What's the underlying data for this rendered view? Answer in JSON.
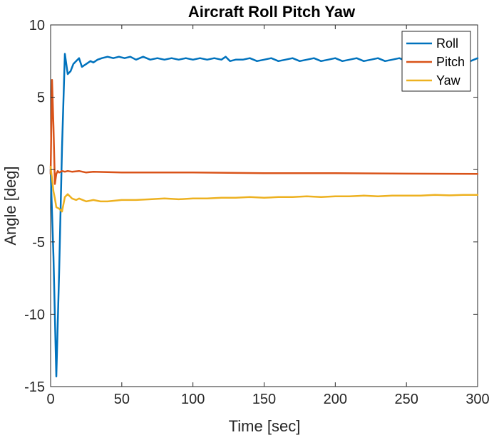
{
  "chart_data": {
    "type": "line",
    "title": "Aircraft Roll Pitch Yaw",
    "xlabel": "Time [sec]",
    "ylabel": "Angle [deg]",
    "xlim": [
      0,
      300
    ],
    "ylim": [
      -15,
      10
    ],
    "xticks": [
      0,
      50,
      100,
      150,
      200,
      250,
      300
    ],
    "yticks": [
      -15,
      -10,
      -5,
      0,
      5,
      10
    ],
    "grid": false,
    "legend_position": "top-right",
    "series": [
      {
        "name": "Roll",
        "color": "#0072BD",
        "x": [
          0,
          2,
          4,
          6,
          8,
          10,
          12,
          14,
          16,
          18,
          20,
          22,
          25,
          28,
          30,
          33,
          36,
          40,
          44,
          48,
          52,
          56,
          60,
          65,
          70,
          75,
          80,
          85,
          90,
          95,
          100,
          105,
          110,
          115,
          120,
          123,
          126,
          130,
          135,
          140,
          145,
          150,
          155,
          160,
          165,
          170,
          175,
          180,
          185,
          190,
          195,
          200,
          205,
          210,
          215,
          220,
          225,
          230,
          235,
          240,
          245,
          250,
          255,
          260,
          265,
          270,
          275,
          280,
          285,
          290,
          295,
          300
        ],
        "y": [
          0,
          -6,
          -14.3,
          -7,
          1.5,
          8.0,
          6.6,
          6.8,
          7.3,
          7.5,
          7.7,
          7.1,
          7.3,
          7.5,
          7.4,
          7.6,
          7.7,
          7.8,
          7.7,
          7.8,
          7.7,
          7.8,
          7.6,
          7.8,
          7.6,
          7.7,
          7.6,
          7.7,
          7.6,
          7.7,
          7.6,
          7.7,
          7.6,
          7.7,
          7.6,
          7.8,
          7.5,
          7.6,
          7.6,
          7.7,
          7.5,
          7.6,
          7.7,
          7.5,
          7.6,
          7.7,
          7.5,
          7.6,
          7.7,
          7.5,
          7.6,
          7.7,
          7.5,
          7.6,
          7.7,
          7.5,
          7.6,
          7.7,
          7.5,
          7.6,
          7.7,
          7.5,
          7.6,
          7.7,
          7.5,
          7.6,
          7.7,
          7.5,
          7.6,
          7.6,
          7.5,
          7.7
        ]
      },
      {
        "name": "Pitch",
        "color": "#D95319",
        "x": [
          0,
          1,
          2,
          3,
          4,
          5,
          6,
          8,
          10,
          12,
          15,
          20,
          25,
          30,
          50,
          100,
          150,
          200,
          250,
          300
        ],
        "y": [
          -0.3,
          6.2,
          3.0,
          -1.0,
          -0.3,
          -0.1,
          -0.2,
          -0.1,
          -0.15,
          -0.1,
          -0.15,
          -0.1,
          -0.2,
          -0.15,
          -0.2,
          -0.2,
          -0.25,
          -0.25,
          -0.28,
          -0.3
        ]
      },
      {
        "name": "Yaw",
        "color": "#EDB120",
        "x": [
          0,
          2,
          3,
          4,
          6,
          8,
          10,
          12,
          15,
          18,
          20,
          25,
          30,
          35,
          40,
          50,
          60,
          70,
          80,
          90,
          100,
          110,
          120,
          130,
          140,
          150,
          160,
          170,
          180,
          190,
          200,
          210,
          220,
          230,
          240,
          250,
          260,
          270,
          280,
          290,
          300
        ],
        "y": [
          0.2,
          -1.5,
          -2.0,
          -2.6,
          -2.7,
          -2.9,
          -1.9,
          -1.7,
          -2.0,
          -2.1,
          -2.0,
          -2.2,
          -2.1,
          -2.2,
          -2.2,
          -2.1,
          -2.1,
          -2.05,
          -2.0,
          -2.05,
          -2.0,
          -2.0,
          -1.95,
          -1.95,
          -1.9,
          -1.95,
          -1.9,
          -1.9,
          -1.85,
          -1.9,
          -1.85,
          -1.85,
          -1.8,
          -1.85,
          -1.8,
          -1.8,
          -1.8,
          -1.75,
          -1.78,
          -1.75,
          -1.75
        ]
      }
    ]
  }
}
